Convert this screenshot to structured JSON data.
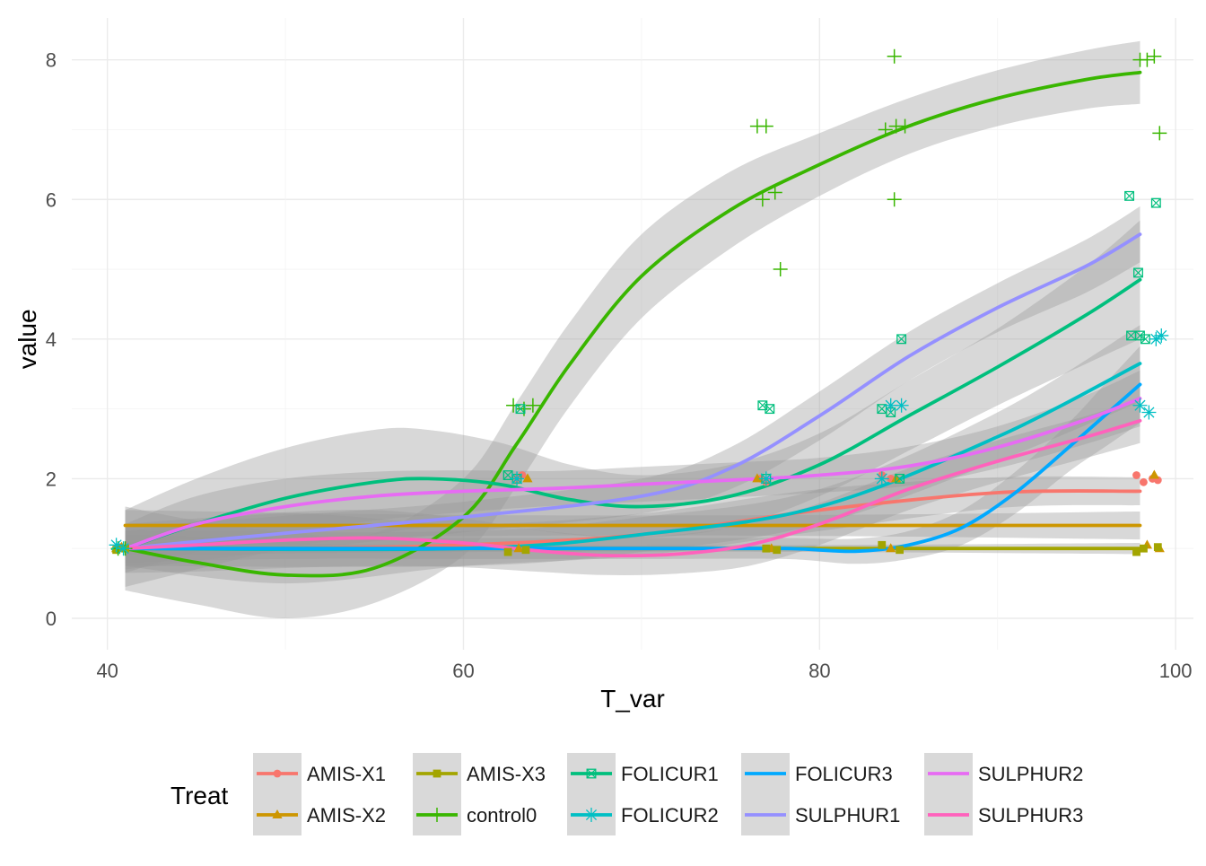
{
  "chart_data": {
    "type": "line",
    "xlabel": "T_var",
    "ylabel": "value",
    "xlim": [
      38,
      101
    ],
    "ylim": [
      -0.45,
      8.6
    ],
    "x_ticks": [
      40,
      60,
      80,
      100
    ],
    "y_ticks": [
      0,
      2,
      4,
      6,
      8
    ],
    "grid": true,
    "legend_position": "bottom",
    "legend_title": "Treat",
    "series": [
      {
        "name": "AMIS-X1",
        "color": "#F8766D",
        "marker": "circle",
        "smooth": [
          [
            41,
            1.0
          ],
          [
            50,
            1.0
          ],
          [
            60,
            1.05
          ],
          [
            70,
            1.2
          ],
          [
            80,
            1.55
          ],
          [
            90,
            1.8
          ],
          [
            98,
            1.82
          ]
        ],
        "band": [
          0.25,
          0.5,
          0.3,
          0.3,
          0.3,
          0.22,
          0.2
        ],
        "points": [
          [
            40.5,
            1.0
          ],
          [
            40.7,
            1.02
          ],
          [
            63.0,
            2.0
          ],
          [
            63.3,
            2.05
          ],
          [
            76.7,
            2.0
          ],
          [
            77.0,
            1.95
          ],
          [
            83.5,
            2.05
          ],
          [
            84.0,
            2.0
          ],
          [
            97.8,
            2.05
          ],
          [
            98.2,
            1.95
          ],
          [
            98.7,
            2.0
          ],
          [
            99.0,
            1.98
          ]
        ]
      },
      {
        "name": "AMIS-X2",
        "color": "#CD9600",
        "marker": "triangle",
        "smooth": [
          [
            41,
            1.33
          ],
          [
            60,
            1.33
          ],
          [
            80,
            1.33
          ],
          [
            98,
            1.33
          ]
        ],
        "band": [
          0.22,
          0.15,
          0.15,
          0.2
        ],
        "points": [
          [
            40.5,
            1.0
          ],
          [
            40.8,
            1.02
          ],
          [
            63.1,
            1.0
          ],
          [
            63.6,
            2.0
          ],
          [
            76.5,
            2.0
          ],
          [
            77.3,
            1.0
          ],
          [
            84.0,
            1.0
          ],
          [
            84.3,
            2.0
          ],
          [
            98.4,
            1.05
          ],
          [
            98.8,
            2.05
          ],
          [
            99.1,
            1.0
          ]
        ]
      },
      {
        "name": "AMIS-X3",
        "color": "#A3A500",
        "marker": "square",
        "smooth": [
          [
            41,
            1.0
          ],
          [
            60,
            1.0
          ],
          [
            80,
            1.0
          ],
          [
            98,
            1.0
          ]
        ],
        "band": [
          0.1,
          0.05,
          0.05,
          0.08
        ],
        "points": [
          [
            40.5,
            0.98
          ],
          [
            41.0,
            1.0
          ],
          [
            62.5,
            0.95
          ],
          [
            63.5,
            0.98
          ],
          [
            77.0,
            1.0
          ],
          [
            77.6,
            0.98
          ],
          [
            83.5,
            1.05
          ],
          [
            84.5,
            0.98
          ],
          [
            97.8,
            0.95
          ],
          [
            98.2,
            1.0
          ],
          [
            99.0,
            1.02
          ]
        ]
      },
      {
        "name": "control0",
        "color": "#39B600",
        "marker": "plus",
        "smooth": [
          [
            41,
            1.0
          ],
          [
            45,
            0.8
          ],
          [
            50,
            0.62
          ],
          [
            55,
            0.72
          ],
          [
            60,
            1.45
          ],
          [
            63,
            2.5
          ],
          [
            66,
            3.65
          ],
          [
            70,
            4.9
          ],
          [
            75,
            5.85
          ],
          [
            80,
            6.5
          ],
          [
            85,
            7.05
          ],
          [
            90,
            7.45
          ],
          [
            95,
            7.72
          ],
          [
            98,
            7.82
          ]
        ],
        "band": [
          0.6,
          0.6,
          0.62,
          0.5,
          0.55,
          0.6,
          0.6,
          0.6,
          0.55,
          0.45,
          0.4,
          0.4,
          0.42,
          0.45
        ],
        "points": [
          [
            40.6,
            1.0
          ],
          [
            41.0,
            1.0
          ],
          [
            62.8,
            3.05
          ],
          [
            63.4,
            3.0
          ],
          [
            63.9,
            3.05
          ],
          [
            76.5,
            7.05
          ],
          [
            77.0,
            7.05
          ],
          [
            76.8,
            6.0
          ],
          [
            77.5,
            6.1
          ],
          [
            77.8,
            5.0
          ],
          [
            83.7,
            7.0
          ],
          [
            84.3,
            7.05
          ],
          [
            84.8,
            7.05
          ],
          [
            84.2,
            8.05
          ],
          [
            84.2,
            6.0
          ],
          [
            98.0,
            8.0
          ],
          [
            98.4,
            8.0
          ],
          [
            98.8,
            8.05
          ],
          [
            99.1,
            6.95
          ]
        ]
      },
      {
        "name": "FOLICUR1",
        "color": "#00BF7D",
        "marker": "square-cross",
        "smooth": [
          [
            41,
            1.0
          ],
          [
            45,
            1.35
          ],
          [
            50,
            1.72
          ],
          [
            55,
            1.95
          ],
          [
            58,
            2.0
          ],
          [
            62,
            1.92
          ],
          [
            66,
            1.7
          ],
          [
            70,
            1.6
          ],
          [
            75,
            1.75
          ],
          [
            80,
            2.2
          ],
          [
            85,
            2.9
          ],
          [
            90,
            3.6
          ],
          [
            95,
            4.35
          ],
          [
            98,
            4.85
          ]
        ],
        "band": [
          0.55,
          0.65,
          0.72,
          0.75,
          0.7,
          0.6,
          0.5,
          0.45,
          0.45,
          0.45,
          0.5,
          0.55,
          0.7,
          0.85
        ],
        "points": [
          [
            62.5,
            2.05
          ],
          [
            63.0,
            2.0
          ],
          [
            63.2,
            3.0
          ],
          [
            76.8,
            3.05
          ],
          [
            77.2,
            3.0
          ],
          [
            77.0,
            2.0
          ],
          [
            83.5,
            3.0
          ],
          [
            84.0,
            2.95
          ],
          [
            84.6,
            4.0
          ],
          [
            84.5,
            2.0
          ],
          [
            97.4,
            6.05
          ],
          [
            97.9,
            4.95
          ],
          [
            98.9,
            5.95
          ],
          [
            97.5,
            4.05
          ],
          [
            98.0,
            4.05
          ],
          [
            98.3,
            4.0
          ]
        ]
      },
      {
        "name": "FOLICUR2",
        "color": "#00BFC4",
        "marker": "asterisk",
        "smooth": [
          [
            41,
            1.0
          ],
          [
            60,
            1.0
          ],
          [
            70,
            1.2
          ],
          [
            80,
            1.6
          ],
          [
            90,
            2.6
          ],
          [
            98,
            3.65
          ]
        ],
        "band": [
          0.25,
          0.25,
          0.25,
          0.25,
          0.35,
          0.55
        ],
        "points": [
          [
            40.5,
            1.05
          ],
          [
            40.9,
            1.0
          ],
          [
            63.0,
            2.0
          ],
          [
            77.0,
            2.0
          ],
          [
            83.5,
            2.0
          ],
          [
            84.0,
            3.05
          ],
          [
            84.6,
            3.05
          ],
          [
            98.0,
            3.05
          ],
          [
            98.5,
            2.95
          ],
          [
            98.9,
            4.0
          ],
          [
            99.2,
            4.05
          ]
        ]
      },
      {
        "name": "FOLICUR3",
        "color": "#00A9FF",
        "marker": "none",
        "smooth": [
          [
            41,
            1.0
          ],
          [
            50,
            1.0
          ],
          [
            60,
            1.0
          ],
          [
            70,
            1.0
          ],
          [
            78,
            1.0
          ],
          [
            82,
            0.96
          ],
          [
            85,
            1.05
          ],
          [
            88,
            1.3
          ],
          [
            91,
            1.8
          ],
          [
            94,
            2.45
          ],
          [
            96,
            2.9
          ],
          [
            98,
            3.35
          ]
        ],
        "band": [
          0.2,
          0.15,
          0.15,
          0.15,
          0.15,
          0.18,
          0.2,
          0.25,
          0.3,
          0.35,
          0.45,
          0.55
        ],
        "points": []
      },
      {
        "name": "SULPHUR1",
        "color": "#9590FF",
        "marker": "none",
        "smooth": [
          [
            41,
            1.0
          ],
          [
            50,
            1.22
          ],
          [
            60,
            1.45
          ],
          [
            70,
            1.75
          ],
          [
            75,
            2.15
          ],
          [
            80,
            2.9
          ],
          [
            85,
            3.75
          ],
          [
            90,
            4.45
          ],
          [
            95,
            5.05
          ],
          [
            98,
            5.5
          ]
        ],
        "band": [
          0.3,
          0.25,
          0.22,
          0.25,
          0.3,
          0.35,
          0.35,
          0.35,
          0.38,
          0.4
        ],
        "points": []
      },
      {
        "name": "SULPHUR2",
        "color": "#E76BF3",
        "marker": "none",
        "smooth": [
          [
            41,
            1.0
          ],
          [
            45,
            1.35
          ],
          [
            50,
            1.6
          ],
          [
            55,
            1.75
          ],
          [
            60,
            1.82
          ],
          [
            65,
            1.86
          ],
          [
            70,
            1.92
          ],
          [
            75,
            1.98
          ],
          [
            80,
            2.05
          ],
          [
            85,
            2.18
          ],
          [
            90,
            2.45
          ],
          [
            95,
            2.85
          ],
          [
            98,
            3.15
          ]
        ],
        "band": [
          0.35,
          0.4,
          0.4,
          0.35,
          0.3,
          0.25,
          0.25,
          0.25,
          0.25,
          0.28,
          0.3,
          0.35,
          0.4
        ],
        "points": []
      },
      {
        "name": "SULPHUR3",
        "color": "#FF62BC",
        "marker": "none",
        "smooth": [
          [
            41,
            1.0
          ],
          [
            45,
            1.05
          ],
          [
            50,
            1.12
          ],
          [
            55,
            1.15
          ],
          [
            60,
            1.08
          ],
          [
            64,
            0.97
          ],
          [
            68,
            0.9
          ],
          [
            72,
            0.92
          ],
          [
            76,
            1.05
          ],
          [
            80,
            1.35
          ],
          [
            85,
            1.85
          ],
          [
            90,
            2.25
          ],
          [
            95,
            2.6
          ],
          [
            98,
            2.83
          ]
        ],
        "band": [
          0.35,
          0.38,
          0.4,
          0.4,
          0.35,
          0.3,
          0.28,
          0.28,
          0.3,
          0.3,
          0.3,
          0.3,
          0.3,
          0.32
        ],
        "points": []
      }
    ]
  }
}
